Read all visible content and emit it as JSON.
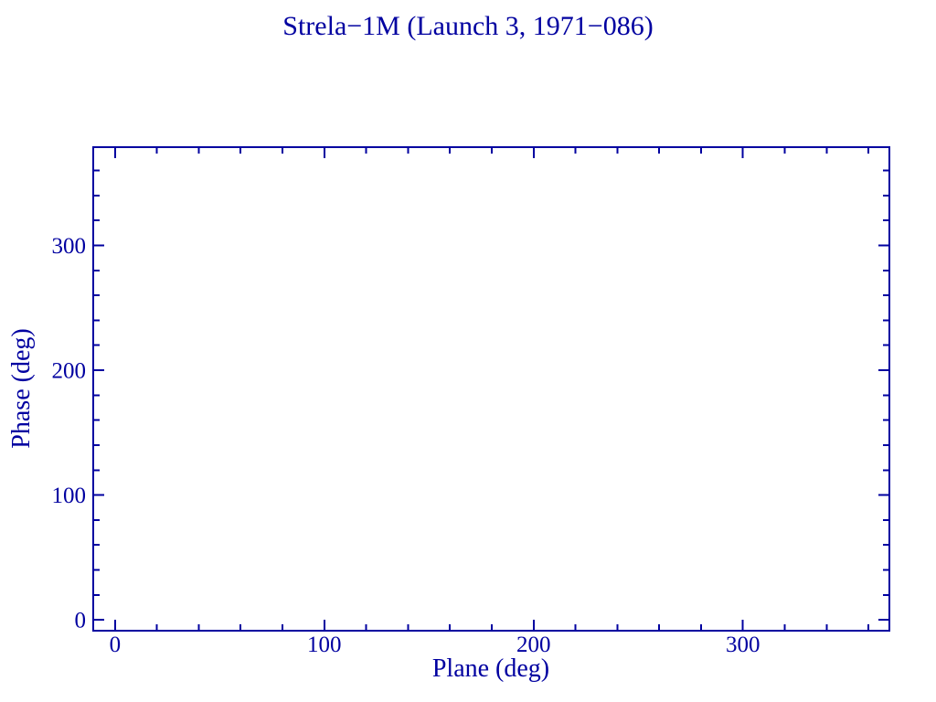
{
  "window": {
    "background": "#ffffff"
  },
  "chart_data": {
    "type": "scatter",
    "title": "Strela−1M (Launch 3, 1971−086)",
    "xlabel": "Plane (deg)",
    "ylabel": "Phase (deg)",
    "xlim": [
      -10.4,
      370.0
    ],
    "ylim": [
      -8.7,
      378.7
    ],
    "x_major_ticks": [
      0,
      100,
      200,
      300
    ],
    "x_tick_labels": [
      "0",
      "100",
      "200",
      "300"
    ],
    "x_minor_step": 20,
    "y_major_ticks": [
      0,
      100,
      200,
      300
    ],
    "y_tick_labels": [
      "0",
      "100",
      "200",
      "300"
    ],
    "y_minor_step": 20,
    "grid": false,
    "legend": null,
    "series": [],
    "points": [],
    "axis_color": "#0000A0",
    "text_color": "#0000A0",
    "tick_style": "inward-all-four-sides"
  }
}
